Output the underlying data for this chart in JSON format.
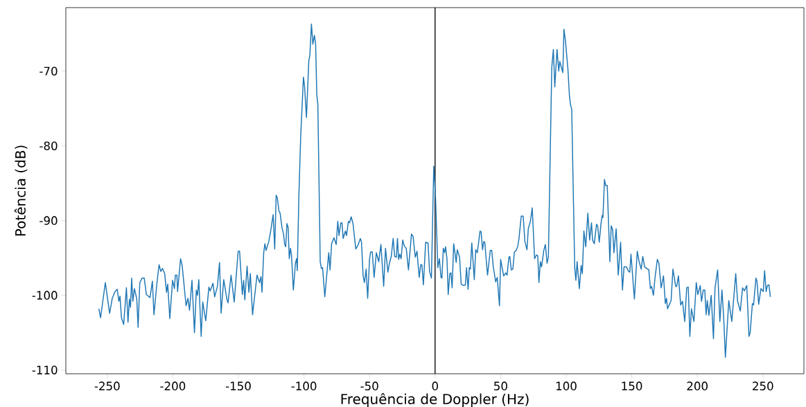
{
  "chart_data": {
    "type": "line",
    "xlabel": "Frequência de Doppler (Hz)",
    "ylabel": "Potência (dB)",
    "xlim": [
      -281.6,
      281.3
    ],
    "ylim": [
      -110.5,
      -61.5
    ],
    "xticks": [
      -250,
      -200,
      -150,
      -100,
      -50,
      0,
      50,
      100,
      150,
      200,
      250
    ],
    "yticks": [
      -110,
      -100,
      -90,
      -80,
      -70
    ],
    "ref_lines": [
      {
        "axis": "x",
        "value": 0,
        "color": "#000000"
      }
    ],
    "series": [
      {
        "color": "#1f77b4",
        "x": [
          -256.4,
          -255.1,
          -251.5,
          -248.2,
          -246.2,
          -244.1,
          -242.4,
          -241.2,
          -240.3,
          -239.2,
          -237.5,
          -235.4,
          -234.2,
          -233.1,
          -232.3,
          -231.4,
          -230.5,
          -229.3,
          -227.5,
          -226.5,
          -225.2,
          -223.5,
          -221.8,
          -220.2,
          -217.4,
          -215.6,
          -214.4,
          -212.1,
          -210.5,
          -209.2,
          -207.9,
          -206.2,
          -204.8,
          -203.9,
          -202.3,
          -200.2,
          -198.8,
          -198.1,
          -196.9,
          -196.4,
          -194.1,
          -192.9,
          -189.9,
          -188.5,
          -187.3,
          -185.4,
          -183.5,
          -182.1,
          -181.2,
          -180.2,
          -178.4,
          -177.2,
          -174.9,
          -172.5,
          -171.5,
          -169.4,
          -168.1,
          -166.0,
          -164.4,
          -163.2,
          -161.2,
          -158.8,
          -157.9,
          -155.6,
          -153.2,
          -150.2,
          -149.1,
          -147.0,
          -146.0,
          -145.1,
          -143.4,
          -142.0,
          -140.9,
          -139.2,
          -135.8,
          -133.9,
          -132.8,
          -132.0,
          -130.7,
          -129.8,
          -128.9,
          -126.8,
          -125.2,
          -123.5,
          -122.3,
          -121.2,
          -120.3,
          -119.1,
          -118.2,
          -116.8,
          -115.6,
          -114.7,
          -113.9,
          -113.0,
          -112.1,
          -111.2,
          -110.3,
          -109.5,
          -108.1,
          -106.5,
          -105.6,
          -105.1,
          -103.9,
          -102.5,
          -100.4,
          -99.5,
          -98.1,
          -96.3,
          -95.5,
          -94.3,
          -93.2,
          -92.0,
          -91.1,
          -90.2,
          -89.4,
          -87.6,
          -86.7,
          -85.8,
          -84.1,
          -81.1,
          -80.1,
          -78.9,
          -77.1,
          -75.4,
          -74.2,
          -73.3,
          -71.9,
          -71.0,
          -70.1,
          -68.4,
          -67.5,
          -66.1,
          -65.2,
          -64.0,
          -62.6,
          -60.5,
          -58.8,
          -57.0,
          -56.1,
          -54.9,
          -53.9,
          -52.6,
          -51.4,
          -50.0,
          -49.2,
          -47.9,
          -46.5,
          -44.8,
          -43.0,
          -41.3,
          -39.2,
          -37.8,
          -36.0,
          -34.8,
          -33.4,
          -32.0,
          -30.8,
          -29.5,
          -28.7,
          -27.8,
          -26.9,
          -25.9,
          -24.7,
          -23.5,
          -22.0,
          -20.3,
          -18.0,
          -16.8,
          -15.1,
          -13.8,
          -12.1,
          -11.0,
          -10.1,
          -8.9,
          -7.2,
          -5.4,
          -4.2,
          -2.8,
          -1.0,
          0.4,
          2.1,
          3.3,
          4.5,
          5.2,
          6.3,
          7.3,
          8.0,
          9.1,
          10.0,
          11.2,
          12.1,
          13.0,
          14.2,
          16.1,
          16.9,
          18.7,
          19.9,
          21.7,
          23.1,
          24.0,
          25.2,
          26.1,
          26.9,
          28.0,
          29.9,
          31.0,
          32.2,
          34.3,
          35.1,
          36.2,
          37.1,
          37.9,
          40.0,
          42.1,
          43.2,
          44.4,
          46.2,
          47.4,
          49.1,
          50.0,
          52.3,
          54.0,
          54.9,
          56.3,
          57.0,
          58.1,
          59.3,
          60.5,
          61.9,
          63.1,
          64.0,
          65.7,
          67.2,
          68.5,
          70.1,
          71.1,
          72.8,
          74.1,
          75.9,
          77.3,
          78.3,
          79.2,
          80.3,
          81.2,
          82.9,
          84.1,
          85.4,
          86.4,
          89.0,
          90.2,
          91.3,
          93.0,
          94.3,
          95.1,
          96.5,
          97.4,
          98.3,
          99.5,
          101.3,
          102.5,
          103.4,
          104.2,
          106.5,
          107.4,
          108.3,
          110.0,
          111.4,
          112.3,
          113.5,
          114.9,
          116.5,
          117.9,
          119.3,
          120.1,
          121.4,
          123.1,
          124.0,
          125.2,
          126.6,
          127.5,
          128.0,
          129.2,
          130.1,
          131.3,
          133.3,
          134.3,
          135.4,
          136.4,
          138.1,
          139.7,
          141.5,
          142.9,
          144.1,
          145.9,
          147.6,
          148.5,
          149.4,
          152.0,
          154.2,
          155.5,
          157.2,
          158.4,
          159.8,
          163.0,
          164.2,
          165.1,
          166.5,
          167.7,
          169.5,
          170.7,
          172.4,
          174.2,
          175.6,
          176.5,
          177.3,
          180.0,
          181.4,
          183.5,
          184.3,
          185.6,
          187.3,
          188.7,
          190.4,
          191.9,
          193.1,
          194.3,
          195.5,
          197.4,
          199.2,
          200.4,
          202.2,
          203.2,
          204.5,
          205.7,
          206.7,
          207.6,
          208.8,
          210.6,
          212.3,
          213.5,
          215.5,
          217.2,
          218.8,
          220.2,
          221.4,
          224.0,
          226.3,
          229.3,
          230.7,
          232.8,
          234.5,
          235.9,
          237.7,
          239.4,
          240.3,
          242.0,
          242.9,
          244.7,
          245.5,
          246.8,
          248.5,
          250.3,
          251.3,
          252.5,
          253.4,
          254.6,
          255.7
        ],
        "values": [
          -101.8,
          -103.0,
          -98.3,
          -102.4,
          -100.4,
          -99.5,
          -99.2,
          -100.8,
          -100.1,
          -103.0,
          -103.9,
          -99.0,
          -103.6,
          -100.5,
          -101.6,
          -97.7,
          -100.8,
          -99.1,
          -100.5,
          -104.3,
          -98.3,
          -97.7,
          -97.7,
          -99.9,
          -100.3,
          -98.1,
          -102.6,
          -98.3,
          -95.9,
          -96.8,
          -96.4,
          -97.1,
          -99.6,
          -98.5,
          -103.1,
          -98.0,
          -99.1,
          -97.3,
          -97.3,
          -99.5,
          -95.1,
          -96.0,
          -101.4,
          -100.4,
          -102.0,
          -98.0,
          -105.0,
          -99.3,
          -100.0,
          -97.9,
          -105.5,
          -100.9,
          -103.4,
          -98.9,
          -99.4,
          -98.4,
          -100.2,
          -98.8,
          -95.6,
          -102.4,
          -97.9,
          -100.5,
          -101.0,
          -97.3,
          -100.9,
          -94.1,
          -94.1,
          -99.9,
          -98.0,
          -100.6,
          -96.1,
          -99.6,
          -97.1,
          -102.6,
          -97.3,
          -98.3,
          -97.5,
          -99.6,
          -94.3,
          -93.1,
          -94.0,
          -92.8,
          -91.2,
          -89.2,
          -93.8,
          -86.6,
          -87.0,
          -88.7,
          -89.0,
          -90.9,
          -91.8,
          -93.2,
          -93.5,
          -90.4,
          -90.9,
          -95.1,
          -93.7,
          -94.6,
          -99.3,
          -95.7,
          -95.1,
          -96.7,
          -86.9,
          -78.8,
          -70.8,
          -72.1,
          -76.2,
          -68.6,
          -67.9,
          -63.7,
          -66.4,
          -65.2,
          -66.4,
          -73.2,
          -74.5,
          -95.5,
          -96.4,
          -96.3,
          -100.2,
          -94.3,
          -96.6,
          -93.1,
          -92.3,
          -93.2,
          -90.1,
          -92.0,
          -90.3,
          -90.3,
          -92.4,
          -91.4,
          -92.0,
          -90.1,
          -90.3,
          -89.5,
          -90.4,
          -93.8,
          -93.3,
          -92.4,
          -92.9,
          -97.4,
          -98.3,
          -96.5,
          -100.4,
          -95.2,
          -94.2,
          -94.2,
          -97.6,
          -94.3,
          -95.5,
          -93.2,
          -98.8,
          -93.7,
          -96.9,
          -95.7,
          -94.8,
          -92.4,
          -94.8,
          -94.9,
          -92.4,
          -95.2,
          -94.5,
          -95.1,
          -92.6,
          -93.4,
          -93.7,
          -96.6,
          -91.8,
          -92.1,
          -94.9,
          -94.1,
          -97.6,
          -95.9,
          -95.9,
          -98.6,
          -92.9,
          -93.0,
          -96.8,
          -97.7,
          -82.7,
          -87.2,
          -96.3,
          -95.1,
          -97.6,
          -97.7,
          -93.7,
          -94.3,
          -93.5,
          -95.2,
          -99.9,
          -97.1,
          -97.0,
          -99.0,
          -93.1,
          -95.6,
          -93.9,
          -94.9,
          -98.5,
          -98.7,
          -98.6,
          -96.3,
          -99.2,
          -96.3,
          -96.5,
          -93.0,
          -97.9,
          -93.9,
          -94.3,
          -91.4,
          -91.5,
          -93.9,
          -92.8,
          -92.9,
          -97.3,
          -94.0,
          -94.0,
          -96.2,
          -98.2,
          -97.6,
          -101.4,
          -95.2,
          -97.4,
          -97.0,
          -97.3,
          -94.9,
          -94.8,
          -96.6,
          -96.5,
          -94.2,
          -94.0,
          -93.4,
          -92.4,
          -89.4,
          -89.4,
          -92.8,
          -93.9,
          -91.1,
          -90.0,
          -88.3,
          -95.1,
          -94.6,
          -94.7,
          -98.3,
          -95.5,
          -96.2,
          -94.0,
          -93.2,
          -95.7,
          -94.9,
          -69.5,
          -67.1,
          -72.1,
          -67.1,
          -70.0,
          -68.7,
          -69.6,
          -70.2,
          -64.4,
          -66.1,
          -69.7,
          -73.4,
          -74.6,
          -75.1,
          -96.3,
          -98.0,
          -95.5,
          -99.1,
          -96.0,
          -97.1,
          -91.4,
          -93.5,
          -89.0,
          -92.6,
          -90.3,
          -92.6,
          -93.1,
          -90.5,
          -90.7,
          -92.9,
          -90.3,
          -89.3,
          -89.6,
          -84.5,
          -85.3,
          -85.3,
          -95.5,
          -90.7,
          -91.2,
          -94.3,
          -91.1,
          -97.3,
          -92.9,
          -99.3,
          -96.2,
          -96.2,
          -96.8,
          -96.9,
          -94.5,
          -100.5,
          -94.1,
          -95.4,
          -96.5,
          -94.8,
          -96.2,
          -96.6,
          -99.1,
          -98.8,
          -100.0,
          -97.7,
          -95.2,
          -95.7,
          -99.0,
          -97.4,
          -101.1,
          -100.4,
          -101.8,
          -100.7,
          -96.5,
          -98.8,
          -98.8,
          -97.4,
          -101.3,
          -100.8,
          -103.5,
          -99.0,
          -98.9,
          -105.5,
          -101.8,
          -103.5,
          -98.3,
          -99.9,
          -98.7,
          -100.8,
          -99.3,
          -99.3,
          -102.6,
          -100.7,
          -102.7,
          -100.0,
          -105.8,
          -99.0,
          -96.6,
          -103.5,
          -99.3,
          -103.3,
          -108.3,
          -100.7,
          -103.5,
          -97.1,
          -100.8,
          -102.1,
          -99.0,
          -99.4,
          -98.7,
          -105.5,
          -105.0,
          -101.1,
          -101.3,
          -97.7,
          -98.1,
          -101.2,
          -99.1,
          -99.5,
          -96.7,
          -99.5,
          -98.7,
          -98.6,
          -100.2
        ]
      }
    ]
  }
}
